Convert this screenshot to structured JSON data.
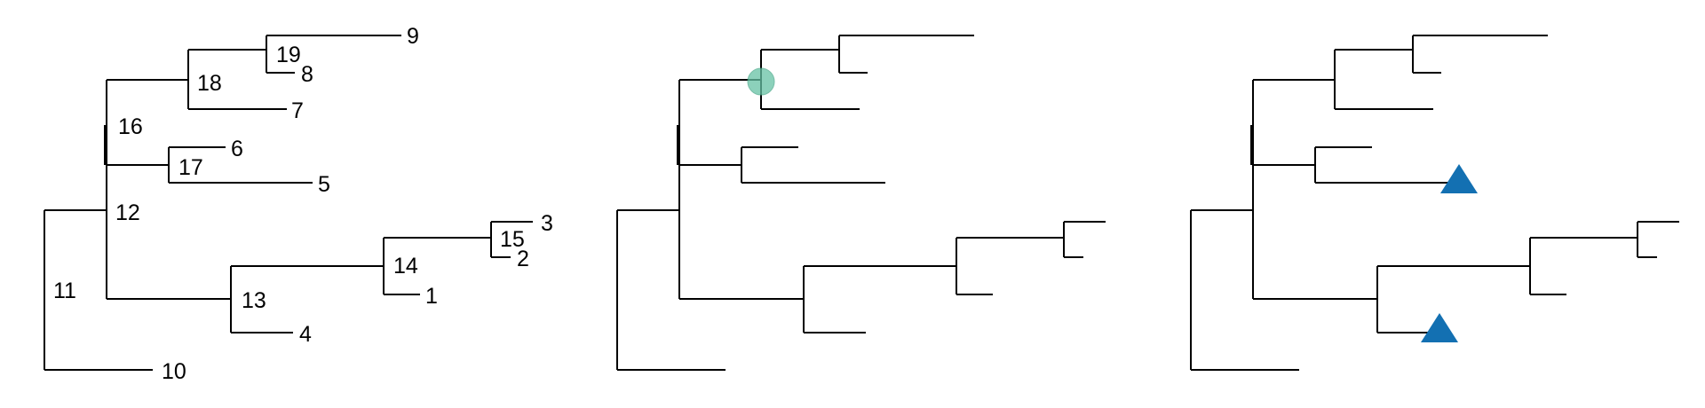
{
  "figure": {
    "description_panels": 3
  },
  "colors": {
    "line": "#000000",
    "circle_fill": "#66c2a5",
    "circle_stroke": "#4aa98a",
    "triangle": "#1370b2"
  },
  "panel1": {
    "labels": {
      "n1": "1",
      "n2": "2",
      "n3": "3",
      "n4": "4",
      "n5": "5",
      "n6": "6",
      "n7": "7",
      "n8": "8",
      "n9": "9",
      "n10": "10",
      "n11": "11",
      "n12": "12",
      "n13": "13",
      "n14": "14",
      "n15": "15",
      "n16": "16",
      "n17": "17",
      "n18": "18",
      "n19": "19"
    }
  },
  "panel2": {
    "highlight": {
      "shape": "circle",
      "node": "18"
    }
  },
  "panel3": {
    "highlights": [
      {
        "shape": "triangle",
        "tip": "5"
      },
      {
        "shape": "triangle",
        "tip": "4"
      }
    ]
  }
}
